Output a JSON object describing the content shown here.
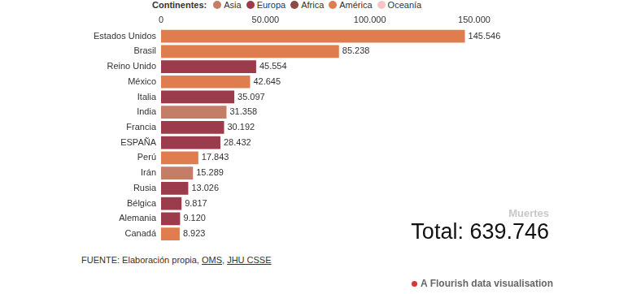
{
  "chart_data": {
    "type": "bar",
    "orientation": "horizontal",
    "legend": "top",
    "legend_title": "Continentes:",
    "grid": false,
    "data_labels": true,
    "categories": [
      "Estados Unidos",
      "Brasil",
      "Reino Unido",
      "México",
      "Italia",
      "India",
      "Francia",
      "ESPAÑA",
      "Perú",
      "Irán",
      "Rusia",
      "Bélgica",
      "Alemania",
      "Canadá"
    ],
    "series": [
      {
        "name": "Asia",
        "color": "#c47d66",
        "values": [
          null,
          null,
          null,
          null,
          null,
          31358,
          null,
          null,
          null,
          15289,
          null,
          null,
          null,
          null
        ],
        "value_labels": [
          null,
          null,
          null,
          null,
          null,
          "31.358",
          null,
          null,
          null,
          "15.289",
          null,
          null,
          null,
          null
        ]
      },
      {
        "name": "Europa",
        "color": "#9c3b4b",
        "values": [
          null,
          null,
          45554,
          null,
          35097,
          null,
          30192,
          28432,
          null,
          null,
          13026,
          9817,
          9120,
          null
        ],
        "value_labels": [
          null,
          null,
          "45.554",
          null,
          "35.097",
          null,
          "30.192",
          "28.432",
          null,
          null,
          "13.026",
          "9.817",
          "9.120",
          null
        ]
      },
      {
        "name": "Africa",
        "color": "#8c4a47",
        "values": [
          null,
          null,
          null,
          null,
          null,
          null,
          null,
          null,
          null,
          null,
          null,
          null,
          null,
          null
        ],
        "value_labels": [
          null,
          null,
          null,
          null,
          null,
          null,
          null,
          null,
          null,
          null,
          null,
          null,
          null,
          null
        ]
      },
      {
        "name": "América",
        "color": "#e07d4f",
        "values": [
          145546,
          85238,
          null,
          42645,
          null,
          null,
          null,
          null,
          17843,
          null,
          null,
          null,
          null,
          8923
        ],
        "value_labels": [
          "145.546",
          "85.238",
          null,
          "42.645",
          null,
          null,
          null,
          null,
          "17.843",
          null,
          null,
          null,
          null,
          "8.923"
        ]
      },
      {
        "name": "Oceanía",
        "color": "#f7c5c9",
        "values": [
          null,
          null,
          null,
          null,
          null,
          null,
          null,
          null,
          null,
          null,
          null,
          null,
          null,
          null
        ],
        "value_labels": [
          null,
          null,
          null,
          null,
          null,
          null,
          null,
          null,
          null,
          null,
          null,
          null,
          null,
          null
        ]
      }
    ],
    "xlim": [
      0,
      150000
    ],
    "xticks": [
      0,
      {
        "value": 50000,
        "label": "50.000"
      },
      {
        "value": 100000,
        "label": "100.000"
      },
      {
        "value": 150000,
        "label": "150.000"
      }
    ],
    "annotations": [
      {
        "text": "Muertes"
      },
      {
        "text": "Total: 639.746",
        "value": 639746
      }
    ],
    "source": [
      {
        "text": "FUENTE: Elaboración propia, "
      },
      {
        "text": "OMS",
        "link": true
      },
      {
        "text": ", "
      },
      {
        "text": "JHU CSSE",
        "link": true
      }
    ],
    "footer": "A Flourish data visualisation"
  }
}
